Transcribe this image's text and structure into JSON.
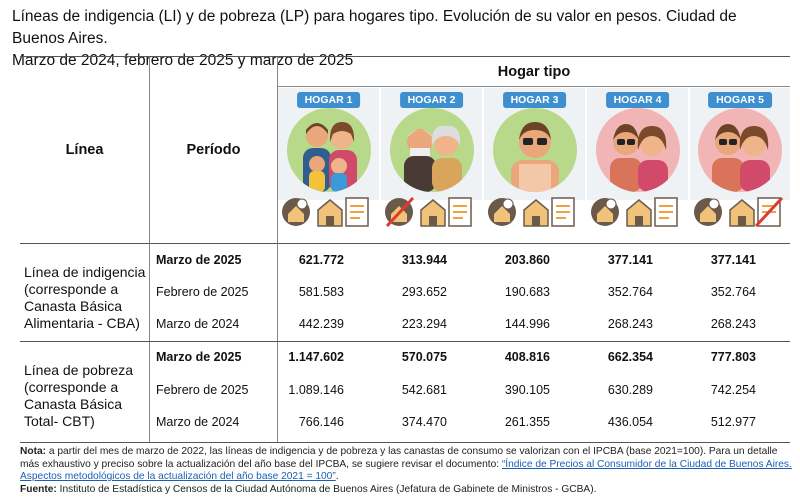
{
  "title_line1": "Líneas de indigencia (LI) y de pobreza (LP) para hogares tipo. Evolución de su valor en pesos. Ciudad de Buenos Aires.",
  "title_line2": "Marzo de 2024, febrero de 2025 y marzo de 2025",
  "header": {
    "linea": "Línea",
    "periodo": "Período",
    "hogar_tipo": "Hogar tipo",
    "hogares": [
      "HOGAR 1",
      "HOGAR 2",
      "HOGAR 3",
      "HOGAR 4",
      "HOGAR 5"
    ]
  },
  "colors": {
    "badge": "#3d8fd0",
    "circle_green": "#b8d98a",
    "circle_pink": "#f2b5b5",
    "no_sign": "#e03a2f"
  },
  "sections": [
    {
      "label_lines": [
        "Línea de indigencia",
        "(corresponde a",
        "Canasta Básica",
        "Alimentaria - CBA)"
      ],
      "rows": [
        {
          "periodo": "Marzo de 2025",
          "bold": true,
          "values": [
            "621.772",
            "313.944",
            "203.860",
            "377.141",
            "377.141"
          ]
        },
        {
          "periodo": "Febrero de 2025",
          "bold": false,
          "values": [
            "581.583",
            "293.652",
            "190.683",
            "352.764",
            "352.764"
          ]
        },
        {
          "periodo": "Marzo de 2024",
          "bold": false,
          "values": [
            "442.239",
            "223.294",
            "144.996",
            "268.243",
            "268.243"
          ]
        }
      ]
    },
    {
      "label_lines": [
        "Línea de pobreza",
        "(corresponde a",
        "Canasta Básica",
        "Total- CBT)"
      ],
      "rows": [
        {
          "periodo": "Marzo de 2025",
          "bold": true,
          "values": [
            "1.147.602",
            "570.075",
            "408.816",
            "662.354",
            "777.803"
          ]
        },
        {
          "periodo": "Febrero de 2025",
          "bold": false,
          "values": [
            "1.089.146",
            "542.681",
            "390.105",
            "630.289",
            "742.254"
          ]
        },
        {
          "periodo": "Marzo de 2024",
          "bold": false,
          "values": [
            "766.146",
            "374.470",
            "261.355",
            "436.054",
            "512.977"
          ]
        }
      ]
    }
  ],
  "note": {
    "label": "Nota:",
    "text": " a partir del mes de marzo de 2022, las líneas de indigencia y de pobreza y las canastas de consumo se valorizan con el IPCBA (base 2021=100). Para un detalle más exhaustivo y preciso sobre la actualización del año base del IPCBA, se sugiere revisar el documento: ",
    "link": "“Índice de Precios al Consumidor de la Ciudad de Buenos Aires. Aspectos metodológicos de la actualización del año base 2021 = 100”",
    "end": "."
  },
  "source": {
    "label": "Fuente:",
    "text": " Instituto de Estadística y Censos de la Ciudad Autónoma de Buenos Aires (Jefatura de Gabinete de Ministros - GCBA)."
  }
}
